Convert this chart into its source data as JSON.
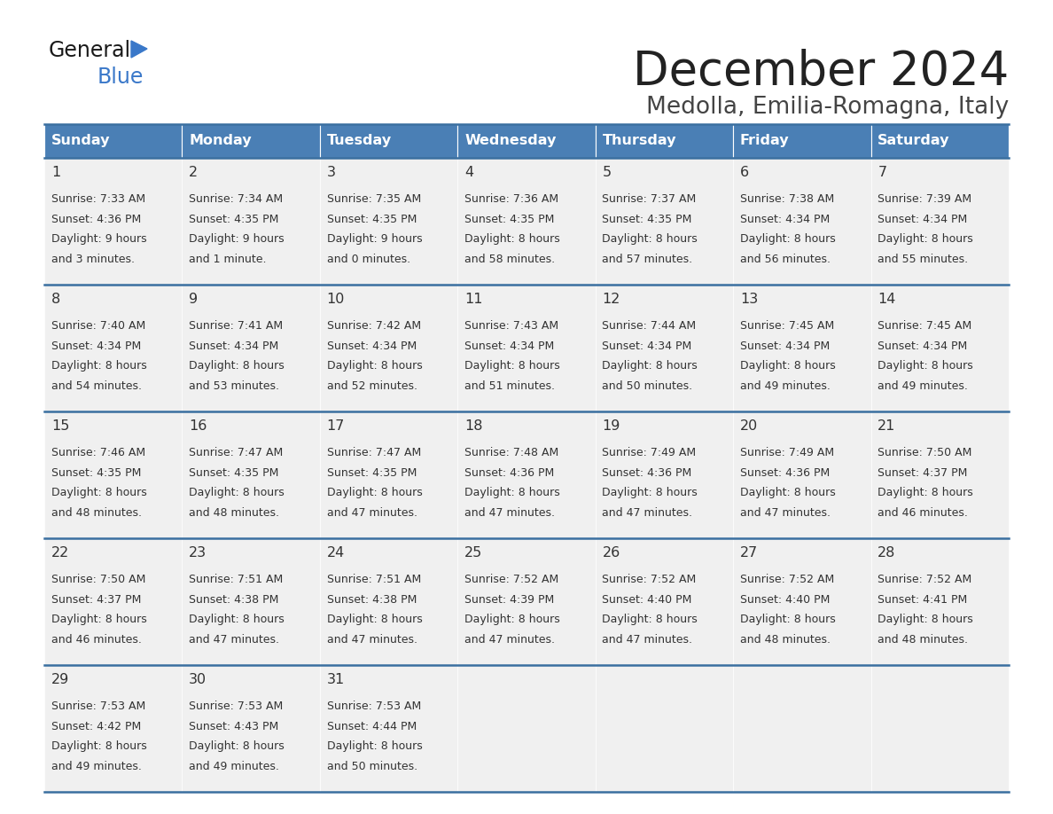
{
  "title": "December 2024",
  "subtitle": "Medolla, Emilia-Romagna, Italy",
  "header_color": "#4a7fb5",
  "header_text_color": "#ffffff",
  "days_of_week": [
    "Sunday",
    "Monday",
    "Tuesday",
    "Wednesday",
    "Thursday",
    "Friday",
    "Saturday"
  ],
  "background_color": "#ffffff",
  "cell_bg_color": "#f0f0f0",
  "cell_border_color": "#3a6fa0",
  "text_color": "#333333",
  "day_num_color": "#333333",
  "title_color": "#222222",
  "subtitle_color": "#444444",
  "calendar_data": [
    [
      {
        "day": 1,
        "sunrise": "7:33 AM",
        "sunset": "4:36 PM",
        "daylight": "9 hours and 3 minutes."
      },
      {
        "day": 2,
        "sunrise": "7:34 AM",
        "sunset": "4:35 PM",
        "daylight": "9 hours and 1 minute."
      },
      {
        "day": 3,
        "sunrise": "7:35 AM",
        "sunset": "4:35 PM",
        "daylight": "9 hours and 0 minutes."
      },
      {
        "day": 4,
        "sunrise": "7:36 AM",
        "sunset": "4:35 PM",
        "daylight": "8 hours and 58 minutes."
      },
      {
        "day": 5,
        "sunrise": "7:37 AM",
        "sunset": "4:35 PM",
        "daylight": "8 hours and 57 minutes."
      },
      {
        "day": 6,
        "sunrise": "7:38 AM",
        "sunset": "4:34 PM",
        "daylight": "8 hours and 56 minutes."
      },
      {
        "day": 7,
        "sunrise": "7:39 AM",
        "sunset": "4:34 PM",
        "daylight": "8 hours and 55 minutes."
      }
    ],
    [
      {
        "day": 8,
        "sunrise": "7:40 AM",
        "sunset": "4:34 PM",
        "daylight": "8 hours and 54 minutes."
      },
      {
        "day": 9,
        "sunrise": "7:41 AM",
        "sunset": "4:34 PM",
        "daylight": "8 hours and 53 minutes."
      },
      {
        "day": 10,
        "sunrise": "7:42 AM",
        "sunset": "4:34 PM",
        "daylight": "8 hours and 52 minutes."
      },
      {
        "day": 11,
        "sunrise": "7:43 AM",
        "sunset": "4:34 PM",
        "daylight": "8 hours and 51 minutes."
      },
      {
        "day": 12,
        "sunrise": "7:44 AM",
        "sunset": "4:34 PM",
        "daylight": "8 hours and 50 minutes."
      },
      {
        "day": 13,
        "sunrise": "7:45 AM",
        "sunset": "4:34 PM",
        "daylight": "8 hours and 49 minutes."
      },
      {
        "day": 14,
        "sunrise": "7:45 AM",
        "sunset": "4:34 PM",
        "daylight": "8 hours and 49 minutes."
      }
    ],
    [
      {
        "day": 15,
        "sunrise": "7:46 AM",
        "sunset": "4:35 PM",
        "daylight": "8 hours and 48 minutes."
      },
      {
        "day": 16,
        "sunrise": "7:47 AM",
        "sunset": "4:35 PM",
        "daylight": "8 hours and 48 minutes."
      },
      {
        "day": 17,
        "sunrise": "7:47 AM",
        "sunset": "4:35 PM",
        "daylight": "8 hours and 47 minutes."
      },
      {
        "day": 18,
        "sunrise": "7:48 AM",
        "sunset": "4:36 PM",
        "daylight": "8 hours and 47 minutes."
      },
      {
        "day": 19,
        "sunrise": "7:49 AM",
        "sunset": "4:36 PM",
        "daylight": "8 hours and 47 minutes."
      },
      {
        "day": 20,
        "sunrise": "7:49 AM",
        "sunset": "4:36 PM",
        "daylight": "8 hours and 47 minutes."
      },
      {
        "day": 21,
        "sunrise": "7:50 AM",
        "sunset": "4:37 PM",
        "daylight": "8 hours and 46 minutes."
      }
    ],
    [
      {
        "day": 22,
        "sunrise": "7:50 AM",
        "sunset": "4:37 PM",
        "daylight": "8 hours and 46 minutes."
      },
      {
        "day": 23,
        "sunrise": "7:51 AM",
        "sunset": "4:38 PM",
        "daylight": "8 hours and 47 minutes."
      },
      {
        "day": 24,
        "sunrise": "7:51 AM",
        "sunset": "4:38 PM",
        "daylight": "8 hours and 47 minutes."
      },
      {
        "day": 25,
        "sunrise": "7:52 AM",
        "sunset": "4:39 PM",
        "daylight": "8 hours and 47 minutes."
      },
      {
        "day": 26,
        "sunrise": "7:52 AM",
        "sunset": "4:40 PM",
        "daylight": "8 hours and 47 minutes."
      },
      {
        "day": 27,
        "sunrise": "7:52 AM",
        "sunset": "4:40 PM",
        "daylight": "8 hours and 48 minutes."
      },
      {
        "day": 28,
        "sunrise": "7:52 AM",
        "sunset": "4:41 PM",
        "daylight": "8 hours and 48 minutes."
      }
    ],
    [
      {
        "day": 29,
        "sunrise": "7:53 AM",
        "sunset": "4:42 PM",
        "daylight": "8 hours and 49 minutes."
      },
      {
        "day": 30,
        "sunrise": "7:53 AM",
        "sunset": "4:43 PM",
        "daylight": "8 hours and 49 minutes."
      },
      {
        "day": 31,
        "sunrise": "7:53 AM",
        "sunset": "4:44 PM",
        "daylight": "8 hours and 50 minutes."
      },
      null,
      null,
      null,
      null
    ]
  ]
}
